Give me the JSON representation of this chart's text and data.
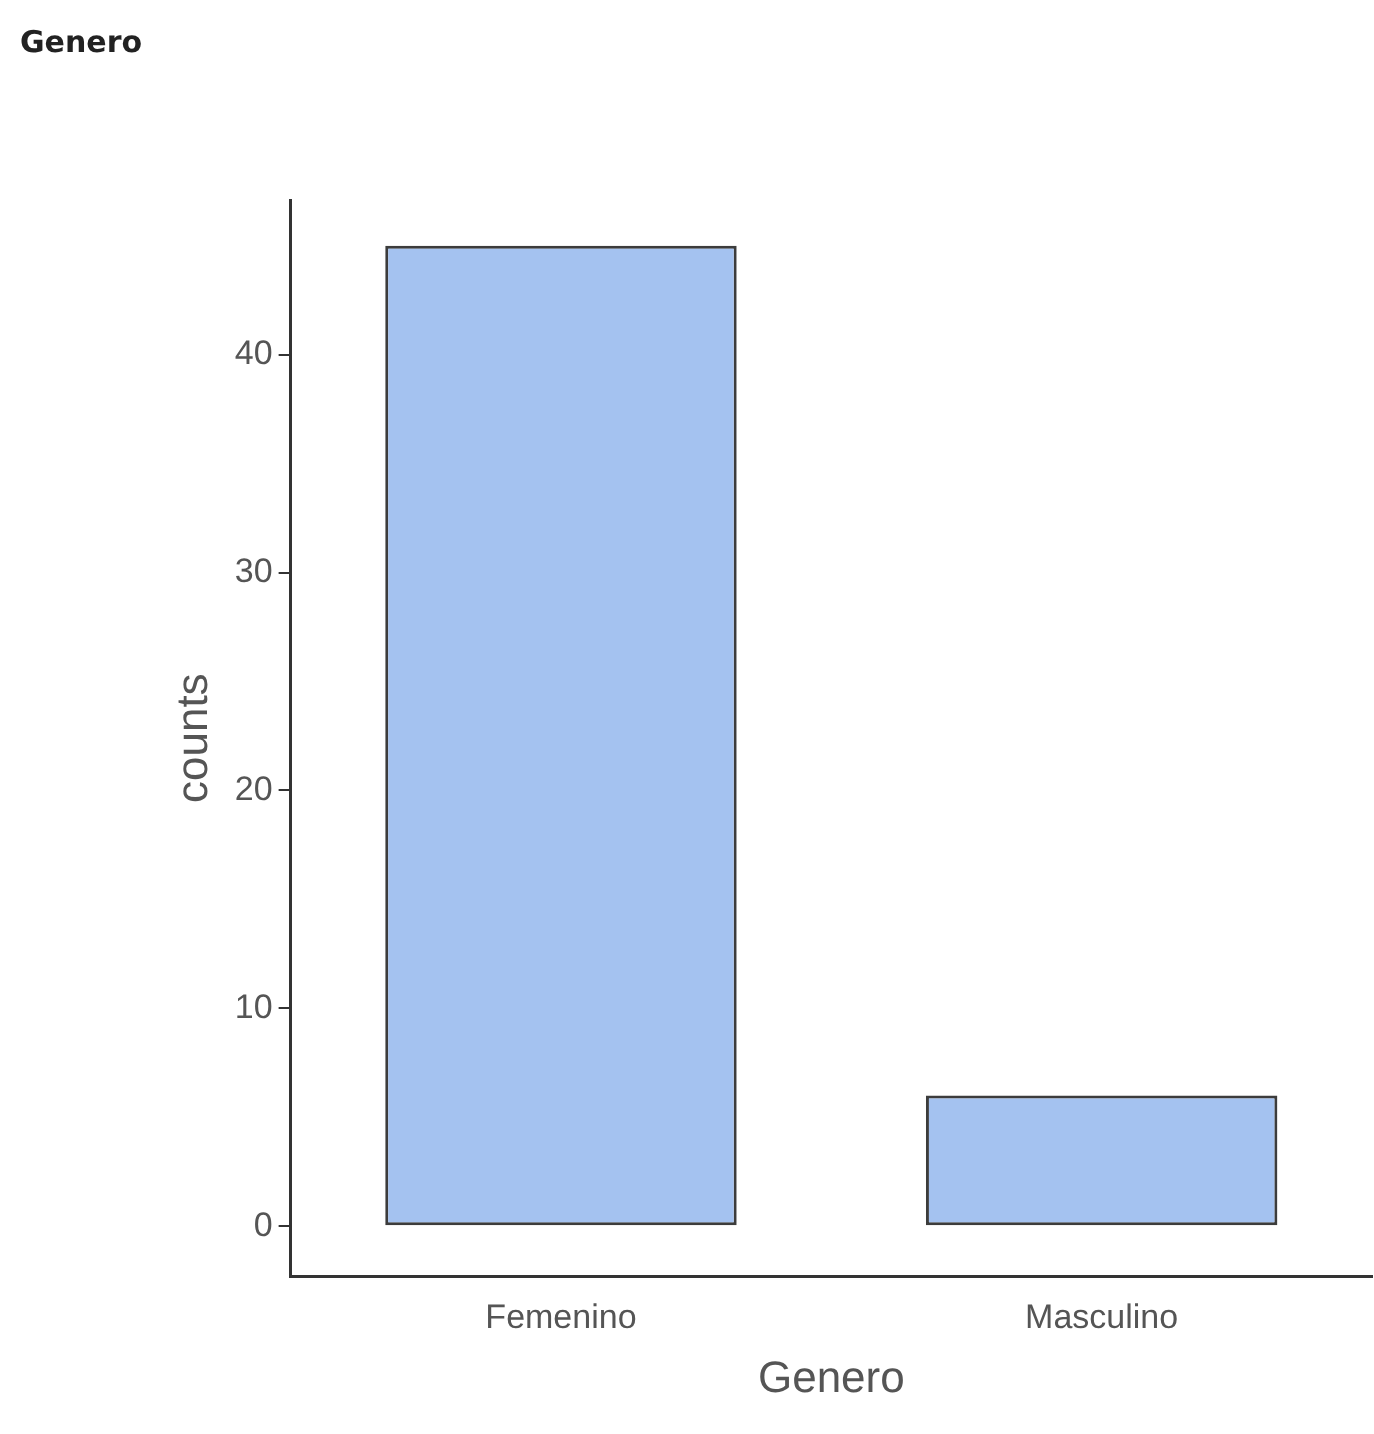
{
  "chart_data": {
    "type": "bar",
    "title": "Genero",
    "xlabel": "Genero",
    "ylabel": "counts",
    "categories": [
      "Femenino",
      "Masculino"
    ],
    "values": [
      45,
      6
    ],
    "color": "#a4c2f0",
    "ylim": [
      -2.3,
      47.1
    ],
    "yticks": [
      0,
      10,
      20,
      30,
      40
    ],
    "grid": false,
    "legend": false
  }
}
